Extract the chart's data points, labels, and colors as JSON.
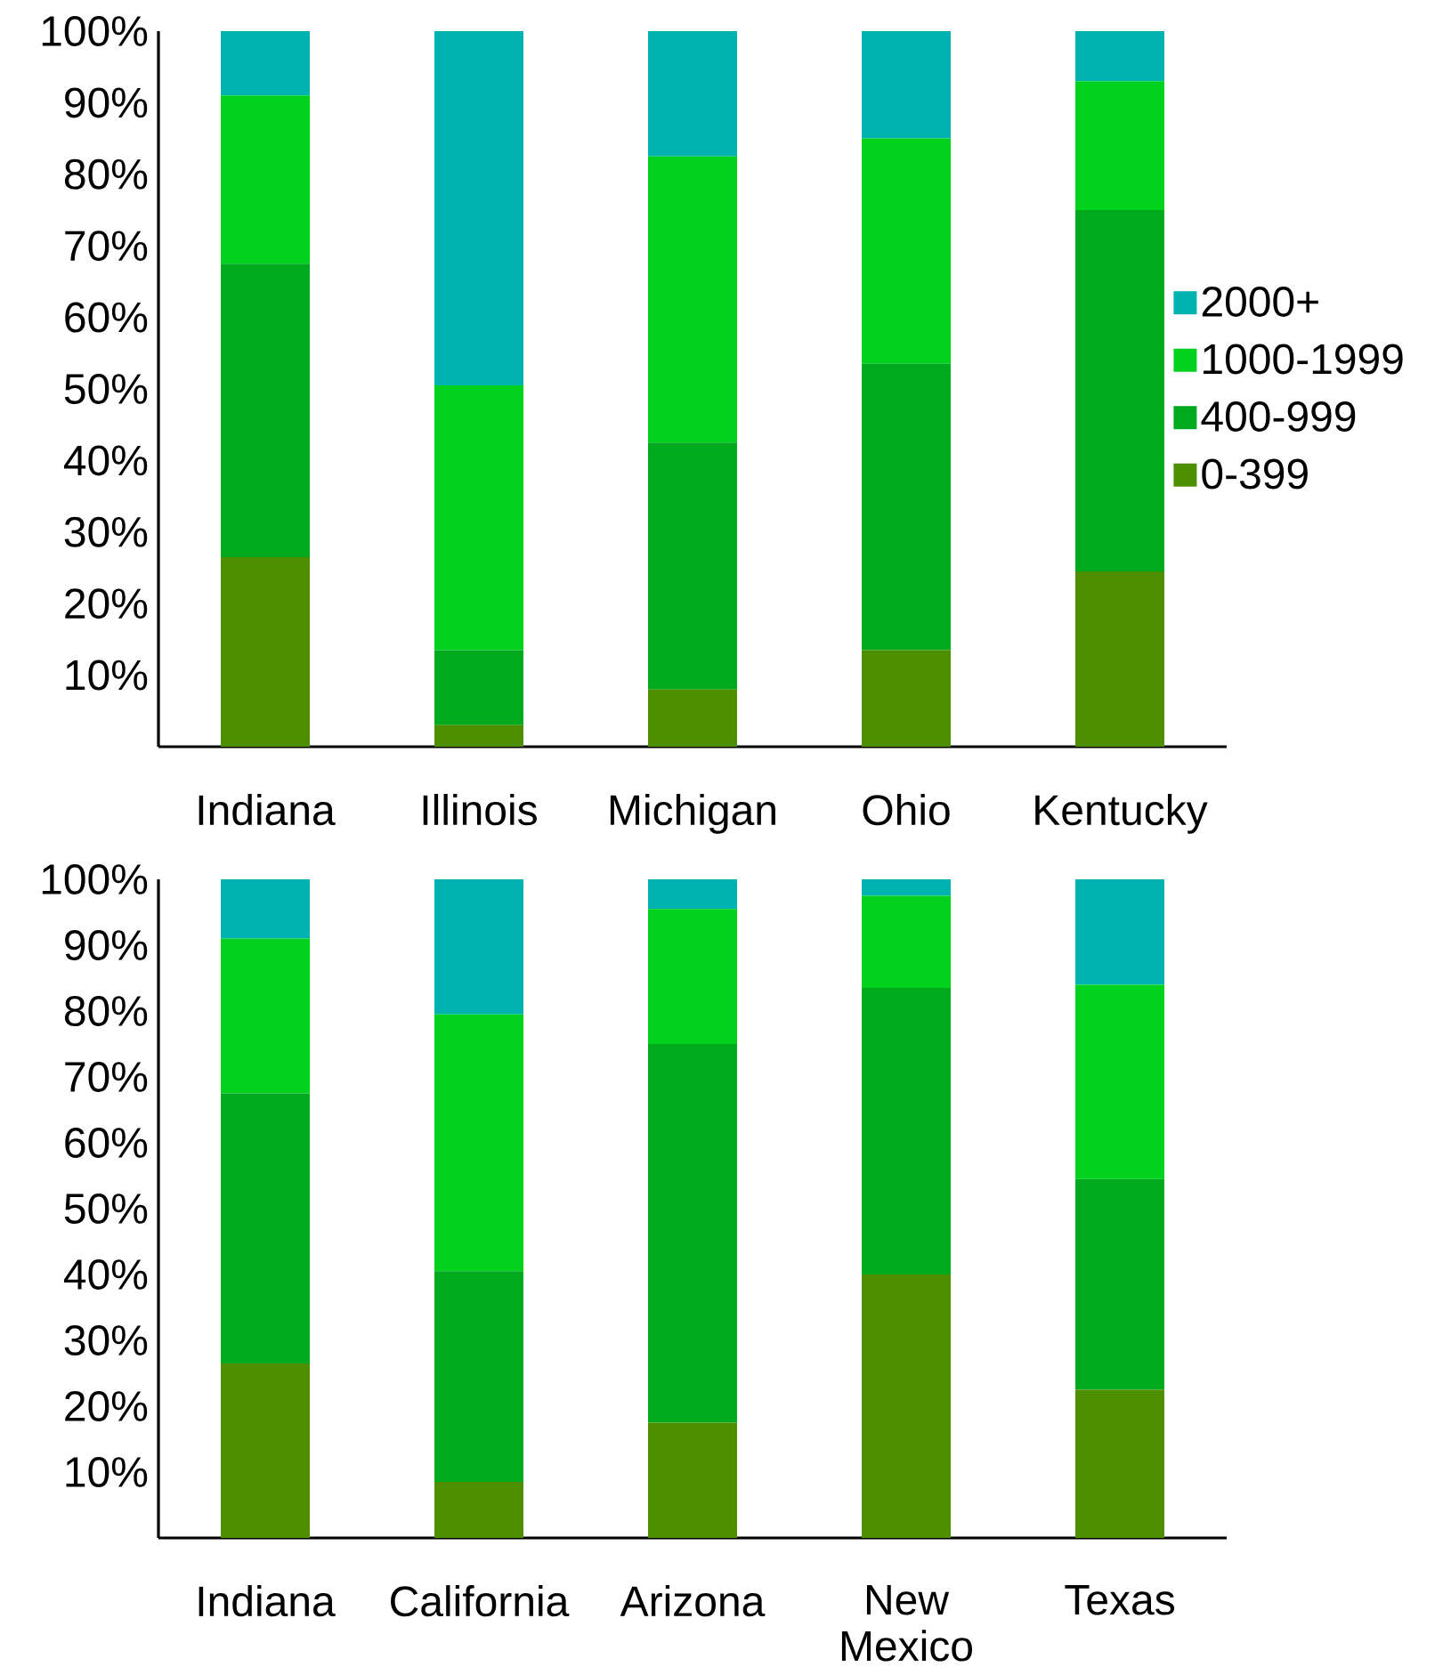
{
  "chart_data": [
    {
      "type": "bar",
      "stacked": true,
      "categories": [
        "Indiana",
        "Illinois",
        "Michigan",
        "Ohio",
        "Kentucky"
      ],
      "series": [
        {
          "name": "0-399",
          "color": "#4e8f00",
          "values": [
            26.5,
            3,
            8,
            13.5,
            24.5
          ]
        },
        {
          "name": "400-999",
          "color": "#00aa1e",
          "values": [
            41,
            10.5,
            34.5,
            40,
            50.5
          ]
        },
        {
          "name": "1000-1999",
          "color": "#00d21e",
          "values": [
            23.5,
            37,
            40,
            31.5,
            18
          ]
        },
        {
          "name": "2000+",
          "color": "#00b2b0",
          "values": [
            9,
            49.5,
            17.5,
            15,
            7
          ]
        }
      ],
      "ylim": [
        0,
        100
      ],
      "yticks": [
        {
          "value": 10,
          "label": "10%"
        },
        {
          "value": 20,
          "label": "20%"
        },
        {
          "value": 30,
          "label": "30%"
        },
        {
          "value": 40,
          "label": "40%"
        },
        {
          "value": 50,
          "label": "50%"
        },
        {
          "value": 60,
          "label": "60%"
        },
        {
          "value": 70,
          "label": "70%"
        },
        {
          "value": 80,
          "label": "80%"
        },
        {
          "value": 90,
          "label": "90%"
        },
        {
          "value": 100,
          "label": "100%"
        }
      ],
      "legend": "right"
    },
    {
      "type": "bar",
      "stacked": true,
      "categories": [
        "Indiana",
        "California",
        "Arizona",
        "New Mexico",
        "Texas"
      ],
      "series": [
        {
          "color": "#4e8f00",
          "values": [
            26.5,
            8.5,
            17.5,
            40,
            22.5
          ]
        },
        {
          "color": "#00aa1e",
          "values": [
            41,
            32,
            57.5,
            43.5,
            32
          ]
        },
        {
          "color": "#00d21e",
          "values": [
            23.5,
            39,
            20.5,
            14,
            29.5
          ]
        },
        {
          "color": "#00b2b0",
          "values": [
            9,
            20.5,
            4.5,
            2.5,
            16
          ]
        }
      ],
      "ylim": [
        0,
        100
      ],
      "yticks": [
        {
          "value": 10,
          "label": "10%"
        },
        {
          "value": 20,
          "label": "20%"
        },
        {
          "value": 30,
          "label": "30%"
        },
        {
          "value": 40,
          "label": "40%"
        },
        {
          "value": 50,
          "label": "50%"
        },
        {
          "value": 60,
          "label": "60%"
        },
        {
          "value": 70,
          "label": "70%"
        },
        {
          "value": 80,
          "label": "80%"
        },
        {
          "value": 90,
          "label": "90%"
        },
        {
          "value": 100,
          "label": "100%"
        }
      ]
    }
  ]
}
